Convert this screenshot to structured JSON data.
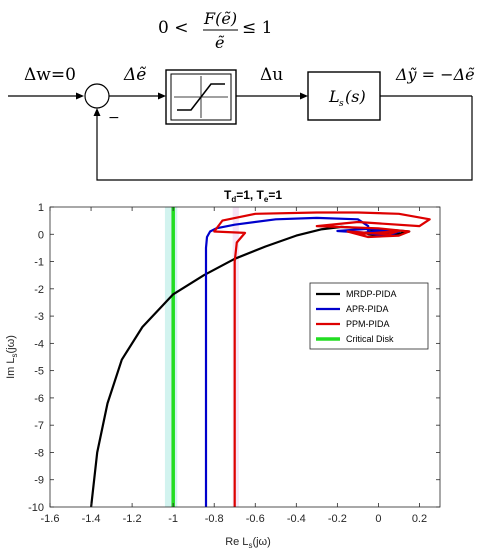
{
  "diagram": {
    "condition": {
      "lhs": "0 <",
      "num": "F(ẽ)",
      "den": "ẽ",
      "rhs": "≤ 1"
    },
    "input_label": "Δw=0",
    "error_label": "Δẽ",
    "minus_sign": "−",
    "control_label": "Δu",
    "plant_label": "L",
    "plant_sub": "s",
    "plant_arg": "(s)",
    "output_label": "Δỹ = −Δẽ"
  },
  "chart_data": {
    "type": "line",
    "title": "T",
    "title_parts": [
      "T",
      "d",
      "=1, T",
      "e",
      "=1"
    ],
    "xlabel": "Re L",
    "xlabel_parts": [
      "Re L",
      "s",
      "(jω)"
    ],
    "ylabel_parts": [
      "Im L",
      "s",
      "(jω)"
    ],
    "xlim": [
      -1.6,
      0.3
    ],
    "ylim": [
      -10,
      1
    ],
    "xticks": [
      -1.6,
      -1.4,
      -1.2,
      -1,
      -0.8,
      -0.6,
      -0.4,
      -0.2,
      0,
      0.2
    ],
    "xtick_labels": [
      "-1.6",
      "-1.4",
      "-1.2",
      "-1",
      "-0.8",
      "-0.6",
      "-0.4",
      "-0.2",
      "0",
      "0.2"
    ],
    "yticks": [
      1,
      0,
      -1,
      -2,
      -3,
      -4,
      -5,
      -6,
      -7,
      -8,
      -9,
      -10
    ],
    "ytick_labels": [
      "1",
      "0",
      "-1",
      "-2",
      "-3",
      "-4",
      "-5",
      "-6",
      "-7",
      "-8",
      "-9",
      "-10"
    ],
    "grid": false,
    "legend_position": "right",
    "series": [
      {
        "name": "MRDP-PIDA",
        "color": "#000000",
        "x": [
          -1.4,
          -1.37,
          -1.32,
          -1.25,
          -1.15,
          -1.0,
          -0.85,
          -0.7,
          -0.55,
          -0.4,
          -0.28,
          -0.18,
          -0.08,
          0.0,
          0.08,
          0.15,
          0.1,
          0.0,
          -0.05,
          0.0,
          0.05
        ],
        "y": [
          -10,
          -8.0,
          -6.2,
          -4.6,
          -3.4,
          -2.2,
          -1.5,
          -0.9,
          -0.45,
          -0.05,
          0.18,
          0.27,
          0.22,
          0.12,
          0.15,
          0.1,
          0.02,
          -0.05,
          0.0,
          0.06,
          0.0
        ]
      },
      {
        "name": "APR-PIDA",
        "color": "#0000cc",
        "x": [
          -0.84,
          -0.84,
          -0.84,
          -0.835,
          -0.82,
          -0.79,
          -0.7,
          -0.5,
          -0.3,
          -0.1,
          -0.05,
          -0.05,
          -0.2,
          -0.05,
          0.1,
          0.05,
          -0.08,
          0.0,
          0.06
        ],
        "y": [
          -10,
          -3.0,
          -0.5,
          -0.1,
          0.1,
          0.22,
          0.35,
          0.55,
          0.6,
          0.55,
          0.3,
          0.05,
          0.12,
          0.2,
          0.1,
          -0.05,
          0.05,
          0.12,
          0.05
        ]
      },
      {
        "name": "PPM-PIDA",
        "color": "#dd0000",
        "x": [
          -0.7,
          -0.7,
          -0.7,
          -0.69,
          -0.65,
          -0.8,
          -0.76,
          -0.6,
          -0.3,
          -0.1,
          0.1,
          0.25,
          0.2,
          0.0,
          -0.1,
          -0.3,
          0.0,
          0.15,
          0.1,
          -0.05,
          -0.15,
          0.05,
          0.1,
          -0.1
        ],
        "y": [
          -10,
          -3.0,
          -1.0,
          -0.3,
          0.05,
          0.1,
          0.5,
          0.75,
          0.8,
          0.8,
          0.75,
          0.55,
          0.3,
          0.4,
          0.45,
          0.3,
          0.22,
          0.1,
          -0.05,
          -0.1,
          0.1,
          0.0,
          0.12,
          0.0
        ]
      },
      {
        "name": "Critical Disk",
        "color": "#22dd22",
        "x": [
          -1.0,
          -1.0
        ],
        "y": [
          -10,
          1
        ]
      }
    ],
    "shaded_bands": [
      {
        "name": "Critical Disk band",
        "color": "#bfeee8",
        "x": [
          -1.04,
          -0.98
        ]
      },
      {
        "name": "PPM band",
        "color": "#f2d8f2",
        "x": [
          -0.71,
          -0.68
        ]
      }
    ]
  }
}
